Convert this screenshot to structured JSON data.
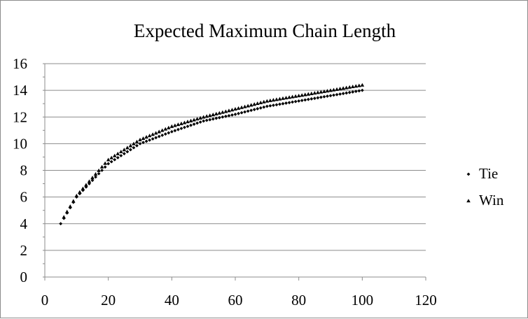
{
  "chart_data": {
    "type": "scatter",
    "title": "Expected Maximum Chain Length",
    "xlabel": "",
    "ylabel": "",
    "xlim": [
      0,
      120
    ],
    "ylim": [
      0,
      16
    ],
    "x_ticks": [
      "0",
      "20",
      "40",
      "60",
      "80",
      "100",
      "120"
    ],
    "y_ticks": [
      "0",
      "2",
      "4",
      "6",
      "8",
      "10",
      "12",
      "14",
      "16"
    ],
    "grid": "horizontal",
    "legend_position": "right",
    "series": [
      {
        "name": "Tie",
        "marker": "diamond",
        "color": "#000000",
        "x_start": 5,
        "x_end": 100,
        "x_step": 1,
        "sample_points": [
          [
            5,
            4.0
          ],
          [
            10,
            6.0
          ],
          [
            20,
            8.5
          ],
          [
            30,
            10.0
          ],
          [
            40,
            10.9
          ],
          [
            50,
            11.7
          ],
          [
            60,
            12.2
          ],
          [
            70,
            12.8
          ],
          [
            80,
            13.2
          ],
          [
            90,
            13.6
          ],
          [
            100,
            14.0
          ]
        ]
      },
      {
        "name": "Win",
        "marker": "triangle",
        "color": "#000000",
        "x_start": 6,
        "x_end": 100,
        "x_step": 1,
        "sample_points": [
          [
            6,
            4.5
          ],
          [
            10,
            6.1
          ],
          [
            20,
            8.8
          ],
          [
            30,
            10.3
          ],
          [
            40,
            11.3
          ],
          [
            50,
            12.0
          ],
          [
            60,
            12.6
          ],
          [
            70,
            13.2
          ],
          [
            80,
            13.6
          ],
          [
            90,
            14.0
          ],
          [
            100,
            14.4
          ]
        ]
      }
    ]
  }
}
